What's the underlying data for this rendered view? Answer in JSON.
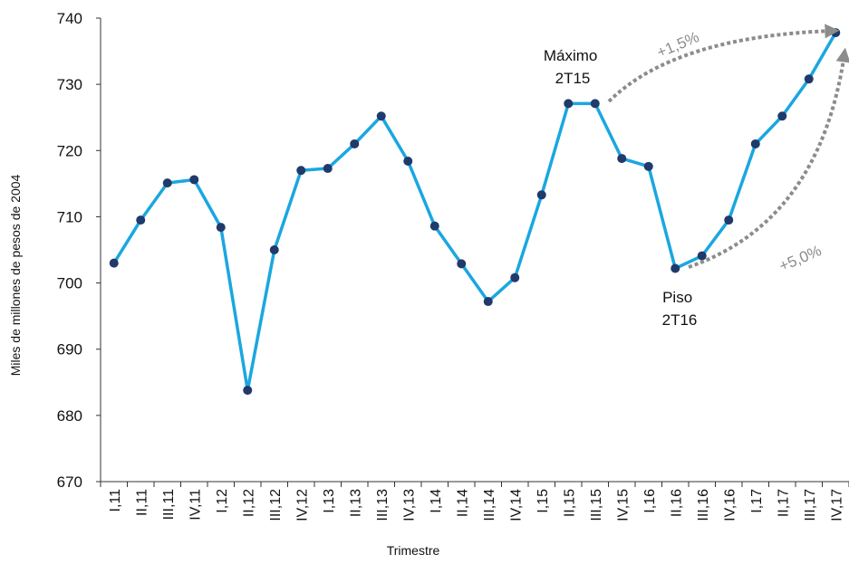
{
  "chart_data": {
    "type": "line",
    "xlabel": "Trimestre",
    "ylabel": "Miles de millones de pesos de 2004",
    "ylim": [
      670,
      740
    ],
    "yticks": [
      670,
      680,
      690,
      700,
      710,
      720,
      730,
      740
    ],
    "grid": false,
    "categories": [
      "I,11",
      "II,11",
      "III,11",
      "IV,11",
      "I,12",
      "II,12",
      "III,12",
      "IV,12",
      "I,13",
      "II,13",
      "III,13",
      "IV,13",
      "I,14",
      "II,14",
      "III,14",
      "IV,14",
      "I,15",
      "II,15",
      "III,15",
      "IV,15",
      "I,16",
      "II,16",
      "III,16",
      "IV,16",
      "I,17",
      "II,17",
      "III,17",
      "IV,17"
    ],
    "series": [
      {
        "values": [
          703.0,
          709.5,
          715.1,
          715.6,
          708.4,
          683.8,
          705.0,
          717.0,
          717.3,
          721.0,
          725.2,
          718.4,
          708.6,
          702.9,
          697.2,
          700.8,
          713.3,
          727.1,
          727.1,
          718.8,
          717.6,
          702.2,
          704.1,
          709.5,
          721.0,
          725.2,
          730.8,
          737.8
        ],
        "color": "#1aa7e0",
        "marker_color": "#1f3a6b"
      }
    ],
    "annotations": [
      {
        "id": "max",
        "lines": [
          "Máximo",
          "2T15"
        ],
        "category": "III,15",
        "value": 727.1
      },
      {
        "id": "min",
        "lines": [
          "Piso",
          "2T16"
        ],
        "category": "II,16",
        "value": 702.2
      },
      {
        "id": "growth_from_max",
        "text": "+1,5%",
        "color": "#8c8c8c"
      },
      {
        "id": "growth_from_min",
        "text": "+5,0%",
        "color": "#8c8c8c"
      }
    ]
  }
}
